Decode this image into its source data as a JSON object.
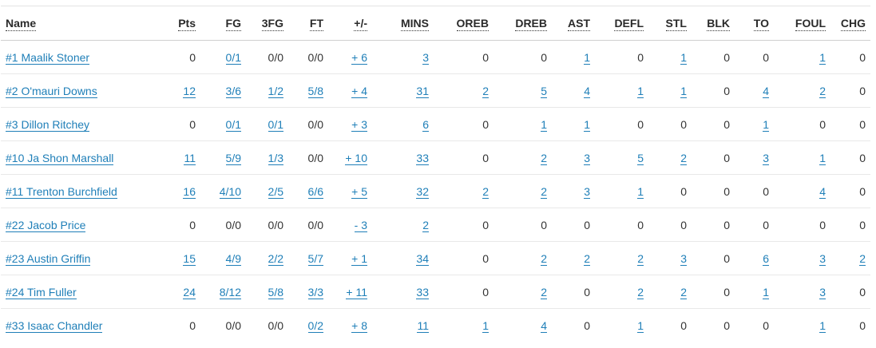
{
  "columns": [
    "Name",
    "Pts",
    "FG",
    "3FG",
    "FT",
    "+/-",
    "MINS",
    "OREB",
    "DREB",
    "AST",
    "DEFL",
    "STL",
    "BLK",
    "TO",
    "FOUL",
    "CHG"
  ],
  "rows": [
    {
      "name": "#1 Maalik Stoner",
      "cells": [
        "0",
        "0/1",
        "0/0",
        "0/0",
        "+ 6",
        "3",
        "0",
        "0",
        "1",
        "0",
        "1",
        "0",
        "0",
        "1",
        "0"
      ],
      "links": [
        false,
        true,
        false,
        false,
        true,
        true,
        false,
        false,
        true,
        false,
        true,
        false,
        false,
        true,
        false
      ]
    },
    {
      "name": "#2 O'mauri Downs",
      "cells": [
        "12",
        "3/6",
        "1/2",
        "5/8",
        "+ 4",
        "31",
        "2",
        "5",
        "4",
        "1",
        "1",
        "0",
        "4",
        "2",
        "0"
      ],
      "links": [
        true,
        true,
        true,
        true,
        true,
        true,
        true,
        true,
        true,
        true,
        true,
        false,
        true,
        true,
        false
      ]
    },
    {
      "name": "#3 Dillon Ritchey",
      "cells": [
        "0",
        "0/1",
        "0/1",
        "0/0",
        "+ 3",
        "6",
        "0",
        "1",
        "1",
        "0",
        "0",
        "0",
        "1",
        "0",
        "0"
      ],
      "links": [
        false,
        true,
        true,
        false,
        true,
        true,
        false,
        true,
        true,
        false,
        false,
        false,
        true,
        false,
        false
      ]
    },
    {
      "name": "#10 Ja Shon Marshall",
      "cells": [
        "11",
        "5/9",
        "1/3",
        "0/0",
        "+ 10",
        "33",
        "0",
        "2",
        "3",
        "5",
        "2",
        "0",
        "3",
        "1",
        "0"
      ],
      "links": [
        true,
        true,
        true,
        false,
        true,
        true,
        false,
        true,
        true,
        true,
        true,
        false,
        true,
        true,
        false
      ]
    },
    {
      "name": "#11 Trenton Burchfield",
      "cells": [
        "16",
        "4/10",
        "2/5",
        "6/6",
        "+ 5",
        "32",
        "2",
        "2",
        "3",
        "1",
        "0",
        "0",
        "0",
        "4",
        "0"
      ],
      "links": [
        true,
        true,
        true,
        true,
        true,
        true,
        true,
        true,
        true,
        true,
        false,
        false,
        false,
        true,
        false
      ]
    },
    {
      "name": "#22 Jacob Price",
      "cells": [
        "0",
        "0/0",
        "0/0",
        "0/0",
        "- 3",
        "2",
        "0",
        "0",
        "0",
        "0",
        "0",
        "0",
        "0",
        "0",
        "0"
      ],
      "links": [
        false,
        false,
        false,
        false,
        true,
        true,
        false,
        false,
        false,
        false,
        false,
        false,
        false,
        false,
        false
      ]
    },
    {
      "name": "#23 Austin Griffin",
      "cells": [
        "15",
        "4/9",
        "2/2",
        "5/7",
        "+ 1",
        "34",
        "0",
        "2",
        "2",
        "2",
        "3",
        "0",
        "6",
        "3",
        "2"
      ],
      "links": [
        true,
        true,
        true,
        true,
        true,
        true,
        false,
        true,
        true,
        true,
        true,
        false,
        true,
        true,
        true
      ]
    },
    {
      "name": "#24 Tim Fuller",
      "cells": [
        "24",
        "8/12",
        "5/8",
        "3/3",
        "+ 11",
        "33",
        "0",
        "2",
        "0",
        "2",
        "2",
        "0",
        "1",
        "3",
        "0"
      ],
      "links": [
        true,
        true,
        true,
        true,
        true,
        true,
        false,
        true,
        false,
        true,
        true,
        false,
        true,
        true,
        false
      ]
    },
    {
      "name": "#33 Isaac Chandler",
      "cells": [
        "0",
        "0/0",
        "0/0",
        "0/2",
        "+ 8",
        "11",
        "1",
        "4",
        "0",
        "1",
        "0",
        "0",
        "0",
        "1",
        "0"
      ],
      "links": [
        false,
        false,
        false,
        true,
        true,
        true,
        true,
        true,
        false,
        true,
        false,
        false,
        false,
        true,
        false
      ]
    }
  ],
  "colors": {
    "link": "#1f7fb8",
    "text": "#333333",
    "header_text": "#2a2a2a",
    "row_divider": "#e8e8e8",
    "header_divider": "#cfcfcf"
  }
}
